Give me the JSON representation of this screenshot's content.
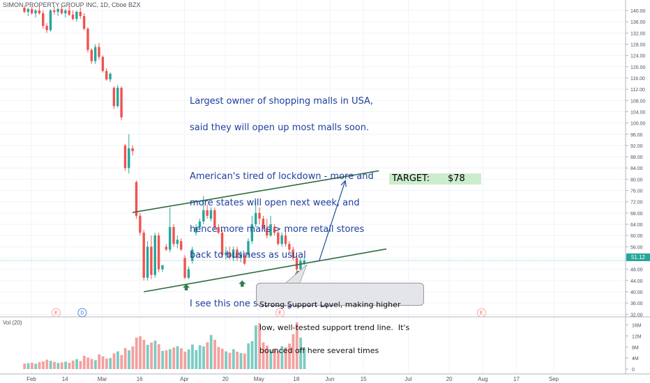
{
  "header": {
    "symbol_title": "SIMON PROPERTY GROUP INC, 1D, Cboe BZX"
  },
  "volume_panel": {
    "title": "Vol (20)"
  },
  "last_price": "51.12",
  "annotations": {
    "main_note_lines": [
      "Largest owner of shopping malls in USA,",
      "said they will open up most malls soon.",
      "",
      "American's tired of lockdown - more and",
      "more states will open next week, and",
      "hence more malls > more retail stores",
      "back to business as usual",
      "",
      "I see this one shooting back up."
    ],
    "target_label": "TARGET:",
    "target_value": "$78",
    "callout_lines": [
      "Strong Support Level, making higher",
      "low, well-tested support trend line.  It's",
      "bounced off here several times"
    ]
  },
  "colors": {
    "up": "#26a69a",
    "down": "#ef5350",
    "up_volume": "#7ccbc3",
    "down_volume": "#f4a09e",
    "trendline": "#2e6b3f",
    "arrow": "#1e4f9a",
    "text_annotation": "#1e3f9e",
    "target_bg": "#cdeccd"
  },
  "chart_data": {
    "type": "candlestick",
    "price_axis": {
      "ylim": [
        28,
        142
      ],
      "ticks": [
        32,
        36,
        40,
        44,
        48,
        52,
        56,
        60,
        64,
        68,
        72,
        76,
        80,
        84,
        88,
        92,
        96,
        100,
        104,
        108,
        112,
        116,
        120,
        124,
        128,
        132,
        136,
        140
      ],
      "tick_labels": [
        "32.00",
        "36.00",
        "40.00",
        "44.00",
        "48.00",
        "52.00",
        "56.00",
        "60.00",
        "64.00",
        "68.00",
        "72.00",
        "76.00",
        "80.00",
        "84.00",
        "88.00",
        "92.00",
        "96.00",
        "100.00",
        "104.00",
        "108.00",
        "112.00",
        "116.00",
        "120.00",
        "124.00",
        "128.00",
        "132.00",
        "136.00",
        "140.00"
      ]
    },
    "volume_axis": {
      "ylim": [
        0,
        18
      ],
      "unit": "M",
      "ticks": [
        0,
        4,
        8,
        12,
        16
      ],
      "tick_labels": [
        "0",
        "4M",
        "8M",
        "12M",
        "16M"
      ]
    },
    "x_axis": {
      "labels": [
        {
          "text": "Feb",
          "bar": 0
        },
        {
          "text": "14",
          "bar": 9
        },
        {
          "text": "Mar",
          "bar": 19
        },
        {
          "text": "16",
          "bar": 29
        },
        {
          "text": "Apr",
          "bar": 41
        },
        {
          "text": "20",
          "bar": 52
        },
        {
          "text": "May",
          "bar": 61
        },
        {
          "text": "18",
          "bar": 71
        },
        {
          "text": "Jun",
          "bar": 80
        },
        {
          "text": "15",
          "bar": 89
        },
        {
          "text": "Jul",
          "bar": 101
        },
        {
          "text": "20",
          "bar": 112
        },
        {
          "text": "Aug",
          "bar": 121
        },
        {
          "text": "17",
          "bar": 130
        },
        {
          "text": "Sep",
          "bar": 140
        }
      ],
      "bar_count": 146
    },
    "events": [
      {
        "text": "E",
        "bar": 7
      },
      {
        "text": "D",
        "bar": 14
      },
      {
        "text": "E",
        "bar": 67
      },
      {
        "text": "E",
        "bar": 121
      }
    ],
    "candles": [
      {
        "o": 141.0,
        "h": 141.8,
        "l": 139.0,
        "c": 139.5
      },
      {
        "o": 139.5,
        "h": 141.0,
        "l": 138.0,
        "c": 140.5
      },
      {
        "o": 140.5,
        "h": 141.5,
        "l": 138.5,
        "c": 139.0
      },
      {
        "o": 139.0,
        "h": 140.5,
        "l": 137.5,
        "c": 140.0
      },
      {
        "o": 140.0,
        "h": 141.5,
        "l": 138.5,
        "c": 139.0
      },
      {
        "o": 139.0,
        "h": 140.0,
        "l": 133.5,
        "c": 134.5
      },
      {
        "o": 134.5,
        "h": 135.5,
        "l": 132.0,
        "c": 133.0
      },
      {
        "o": 133.0,
        "h": 140.5,
        "l": 132.5,
        "c": 140.0
      },
      {
        "o": 140.0,
        "h": 141.5,
        "l": 138.5,
        "c": 139.5
      },
      {
        "o": 139.5,
        "h": 141.0,
        "l": 138.0,
        "c": 140.5
      },
      {
        "o": 140.5,
        "h": 141.5,
        "l": 138.5,
        "c": 139.0
      },
      {
        "o": 139.0,
        "h": 140.5,
        "l": 137.5,
        "c": 140.0
      },
      {
        "o": 140.0,
        "h": 141.5,
        "l": 138.0,
        "c": 138.5
      },
      {
        "o": 138.5,
        "h": 140.0,
        "l": 136.5,
        "c": 137.0
      },
      {
        "o": 137.0,
        "h": 140.0,
        "l": 136.0,
        "c": 139.5
      },
      {
        "o": 139.5,
        "h": 141.0,
        "l": 137.0,
        "c": 138.0
      },
      {
        "o": 138.0,
        "h": 139.0,
        "l": 133.0,
        "c": 133.5
      },
      {
        "o": 133.5,
        "h": 134.0,
        "l": 125.0,
        "c": 126.0
      },
      {
        "o": 126.0,
        "h": 126.5,
        "l": 121.0,
        "c": 122.0
      },
      {
        "o": 122.0,
        "h": 128.0,
        "l": 121.0,
        "c": 127.0
      },
      {
        "o": 127.0,
        "h": 128.5,
        "l": 122.5,
        "c": 123.5
      },
      {
        "o": 123.5,
        "h": 124.0,
        "l": 118.0,
        "c": 118.5
      },
      {
        "o": 118.5,
        "h": 119.5,
        "l": 115.0,
        "c": 115.5
      },
      {
        "o": 115.5,
        "h": 118.0,
        "l": 114.5,
        "c": 117.5
      },
      {
        "o": 112.5,
        "h": 113.0,
        "l": 105.0,
        "c": 106.0
      },
      {
        "o": 106.0,
        "h": 113.5,
        "l": 105.5,
        "c": 112.5
      },
      {
        "o": 112.5,
        "h": 113.0,
        "l": 101.0,
        "c": 102.0
      },
      {
        "o": 92.0,
        "h": 92.5,
        "l": 83.0,
        "c": 84.0
      },
      {
        "o": 84.0,
        "h": 96.0,
        "l": 82.0,
        "c": 91.0
      },
      {
        "o": 91.0,
        "h": 92.0,
        "l": 88.5,
        "c": 90.0
      },
      {
        "o": 79.0,
        "h": 79.5,
        "l": 66.0,
        "c": 67.0
      },
      {
        "o": 67.0,
        "h": 68.0,
        "l": 60.0,
        "c": 61.0
      },
      {
        "o": 61.0,
        "h": 62.0,
        "l": 44.0,
        "c": 45.0
      },
      {
        "o": 45.0,
        "h": 58.0,
        "l": 44.0,
        "c": 56.0
      },
      {
        "o": 56.0,
        "h": 60.0,
        "l": 44.5,
        "c": 46.0
      },
      {
        "o": 46.0,
        "h": 61.0,
        "l": 45.0,
        "c": 60.0
      },
      {
        "o": 60.0,
        "h": 61.0,
        "l": 47.0,
        "c": 48.0
      },
      {
        "o": 48.0,
        "h": 49.0,
        "l": 47.0,
        "c": 49.5
      },
      {
        "o": 56.0,
        "h": 57.0,
        "l": 54.5,
        "c": 55.0
      },
      {
        "o": 55.0,
        "h": 70.0,
        "l": 54.0,
        "c": 63.0
      },
      {
        "o": 63.0,
        "h": 64.0,
        "l": 56.0,
        "c": 57.0
      },
      {
        "o": 57.0,
        "h": 60.0,
        "l": 55.5,
        "c": 58.5
      },
      {
        "o": 58.0,
        "h": 59.0,
        "l": 54.5,
        "c": 55.0
      },
      {
        "o": 52.0,
        "h": 53.0,
        "l": 44.5,
        "c": 45.0
      },
      {
        "o": 45.0,
        "h": 49.0,
        "l": 44.5,
        "c": 48.0
      },
      {
        "o": 51.0,
        "h": 56.0,
        "l": 50.0,
        "c": 55.0
      },
      {
        "o": 61.0,
        "h": 64.0,
        "l": 60.0,
        "c": 63.0
      },
      {
        "o": 63.0,
        "h": 66.0,
        "l": 62.0,
        "c": 65.0
      },
      {
        "o": 65.0,
        "h": 74.0,
        "l": 64.0,
        "c": 69.0
      },
      {
        "o": 69.0,
        "h": 71.0,
        "l": 66.0,
        "c": 67.0
      },
      {
        "o": 66.0,
        "h": 70.0,
        "l": 65.0,
        "c": 69.0
      },
      {
        "o": 69.0,
        "h": 70.0,
        "l": 62.0,
        "c": 63.0
      },
      {
        "o": 63.0,
        "h": 64.0,
        "l": 60.5,
        "c": 61.0
      },
      {
        "o": 61.0,
        "h": 62.0,
        "l": 52.0,
        "c": 53.0
      },
      {
        "o": 53.0,
        "h": 56.0,
        "l": 51.5,
        "c": 54.0
      },
      {
        "o": 54.0,
        "h": 56.0,
        "l": 51.5,
        "c": 52.5
      },
      {
        "o": 52.0,
        "h": 56.0,
        "l": 51.0,
        "c": 55.0
      },
      {
        "o": 55.0,
        "h": 56.0,
        "l": 51.0,
        "c": 52.0
      },
      {
        "o": 52.0,
        "h": 54.5,
        "l": 50.5,
        "c": 53.5
      },
      {
        "o": 53.0,
        "h": 54.0,
        "l": 49.5,
        "c": 50.0
      },
      {
        "o": 53.0,
        "h": 59.0,
        "l": 52.0,
        "c": 58.0
      },
      {
        "o": 58.0,
        "h": 67.0,
        "l": 57.0,
        "c": 64.0
      },
      {
        "o": 64.0,
        "h": 73.0,
        "l": 63.0,
        "c": 68.0
      },
      {
        "o": 68.0,
        "h": 70.0,
        "l": 64.0,
        "c": 66.0
      },
      {
        "o": 66.0,
        "h": 67.0,
        "l": 62.0,
        "c": 62.5
      },
      {
        "o": 62.5,
        "h": 66.0,
        "l": 59.0,
        "c": 60.0
      },
      {
        "o": 60.0,
        "h": 67.0,
        "l": 59.5,
        "c": 64.0
      },
      {
        "o": 63.0,
        "h": 64.0,
        "l": 60.0,
        "c": 61.0
      },
      {
        "o": 61.0,
        "h": 62.0,
        "l": 56.5,
        "c": 57.0
      },
      {
        "o": 57.0,
        "h": 61.0,
        "l": 56.0,
        "c": 60.0
      },
      {
        "o": 60.0,
        "h": 62.0,
        "l": 56.0,
        "c": 57.0
      },
      {
        "o": 57.0,
        "h": 58.0,
        "l": 54.0,
        "c": 55.0
      },
      {
        "o": 55.0,
        "h": 56.0,
        "l": 51.0,
        "c": 52.0
      },
      {
        "o": 52.0,
        "h": 53.0,
        "l": 46.0,
        "c": 48.0
      },
      {
        "o": 48.0,
        "h": 52.0,
        "l": 47.0,
        "c": 51.0
      },
      {
        "o": 50.0,
        "h": 52.5,
        "l": 49.5,
        "c": 51.12
      }
    ],
    "volume_millions": [
      2.0,
      2.1,
      2.3,
      1.9,
      2.5,
      2.8,
      3.4,
      3.0,
      2.6,
      2.2,
      2.4,
      2.7,
      2.3,
      3.1,
      3.6,
      2.9,
      4.8,
      4.2,
      3.7,
      3.2,
      5.3,
      4.6,
      3.8,
      4.0,
      5.7,
      6.4,
      5.1,
      7.6,
      6.8,
      8.2,
      11.4,
      11.9,
      10.6,
      8.8,
      9.6,
      10.3,
      9.0,
      6.6,
      6.8,
      7.2,
      7.8,
      8.3,
      7.5,
      6.3,
      7.1,
      8.9,
      6.9,
      8.6,
      8.2,
      9.7,
      12.3,
      10.6,
      8.0,
      7.4,
      6.4,
      5.9,
      7.2,
      6.3,
      5.8,
      5.6,
      9.3,
      10.1,
      15.8,
      16.6,
      9.7,
      8.5,
      6.8,
      7.4,
      6.6,
      8.3,
      7.9,
      9.2,
      12.6,
      16.9,
      11.4,
      7.4
    ],
    "trendlines": [
      {
        "name": "upper-channel",
        "from": {
          "bar": 29,
          "price": 68.2
        },
        "to": {
          "bar": 95,
          "price": 83.0
        }
      },
      {
        "name": "support-line",
        "from": {
          "bar": 32,
          "price": 40.0
        },
        "to": {
          "bar": 97,
          "price": 55.2
        }
      }
    ],
    "projection_arrow": {
      "from": {
        "bar": 79,
        "price": 51.0
      },
      "to": {
        "bar": 86,
        "price": 79.5
      }
    },
    "support_markers": [
      {
        "bar": 43,
        "price": 41.5
      },
      {
        "bar": 58,
        "price": 42.8
      },
      {
        "bar": 73,
        "price": 46.3
      }
    ]
  }
}
